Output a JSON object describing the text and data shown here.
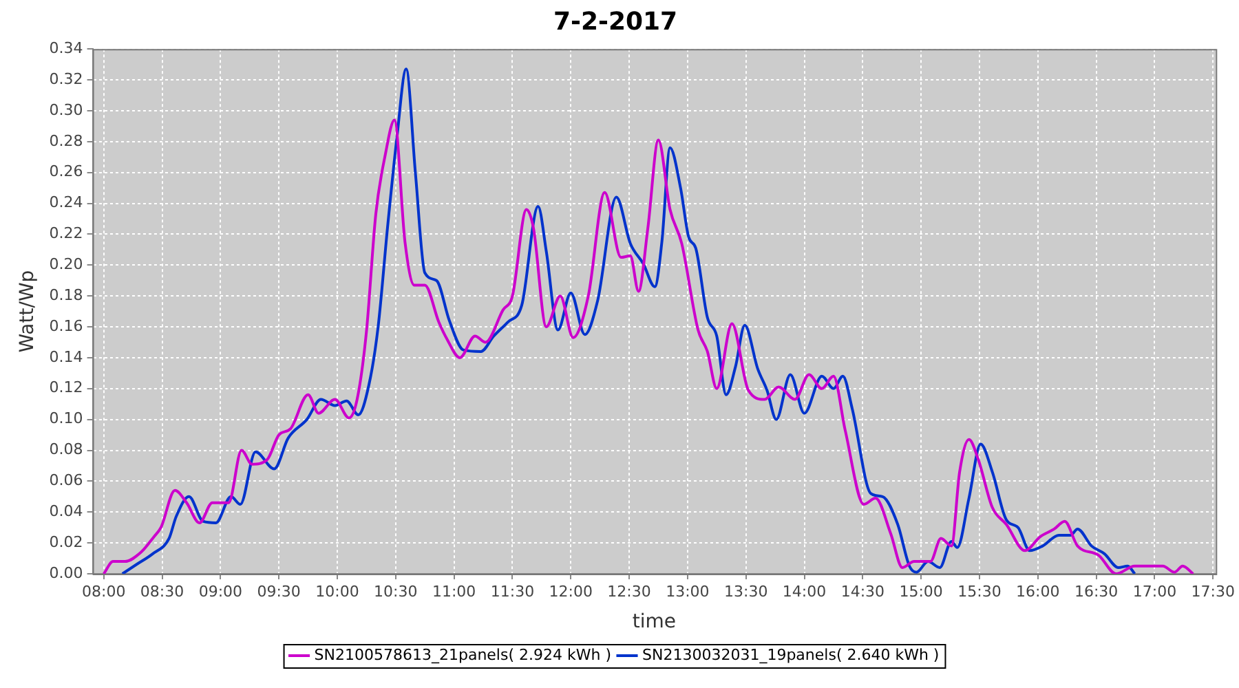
{
  "chart_data": {
    "type": "line",
    "title": "7-2-2017",
    "xlabel": "time",
    "ylabel": "Watt/Wp",
    "legend": "bottom",
    "grid": true,
    "marker": "none",
    "line_style": "solid",
    "xlim": [
      7.905,
      17.524
    ],
    "xticks": [
      {
        "value": 8,
        "label": "08:00"
      },
      {
        "value": 8.5,
        "label": "08:30"
      },
      {
        "value": 9,
        "label": "09:00"
      },
      {
        "value": 9.5,
        "label": "09:30"
      },
      {
        "value": 10,
        "label": "10:00"
      },
      {
        "value": 10.5,
        "label": "10:30"
      },
      {
        "value": 11,
        "label": "11:00"
      },
      {
        "value": 11.5,
        "label": "11:30"
      },
      {
        "value": 12,
        "label": "12:00"
      },
      {
        "value": 12.5,
        "label": "12:30"
      },
      {
        "value": 13,
        "label": "13:00"
      },
      {
        "value": 13.5,
        "label": "13:30"
      },
      {
        "value": 14,
        "label": "14:00"
      },
      {
        "value": 14.5,
        "label": "14:30"
      },
      {
        "value": 15,
        "label": "15:00"
      },
      {
        "value": 15.5,
        "label": "15:30"
      },
      {
        "value": 16,
        "label": "16:00"
      },
      {
        "value": 16.5,
        "label": "16:30"
      },
      {
        "value": 17,
        "label": "17:00"
      },
      {
        "value": 17.5,
        "label": "17:30"
      }
    ],
    "ylim": [
      0,
      0.34
    ],
    "yticks": [
      {
        "value": 0,
        "label": "0.00"
      },
      {
        "value": 0.02,
        "label": "0.02"
      },
      {
        "value": 0.04,
        "label": "0.04"
      },
      {
        "value": 0.06,
        "label": "0.06"
      },
      {
        "value": 0.08,
        "label": "0.08"
      },
      {
        "value": 0.1,
        "label": "0.10"
      },
      {
        "value": 0.12,
        "label": "0.12"
      },
      {
        "value": 0.14,
        "label": "0.14"
      },
      {
        "value": 0.16,
        "label": "0.16"
      },
      {
        "value": 0.18,
        "label": "0.18"
      },
      {
        "value": 0.2,
        "label": "0.20"
      },
      {
        "value": 0.22,
        "label": "0.22"
      },
      {
        "value": 0.24,
        "label": "0.24"
      },
      {
        "value": 0.26,
        "label": "0.26"
      },
      {
        "value": 0.28,
        "label": "0.28"
      },
      {
        "value": 0.3,
        "label": "0.30"
      },
      {
        "value": 0.32,
        "label": "0.32"
      },
      {
        "value": 0.34,
        "label": "0.34"
      }
    ],
    "series": [
      {
        "name": "SN2100578613_21panels( 2.924 kWh )",
        "color": "#cc00cc",
        "x": [
          8.0,
          8.08,
          8.18,
          8.32,
          8.43,
          8.49,
          8.61,
          8.71,
          8.82,
          8.93,
          9.07,
          9.18,
          9.27,
          9.4,
          9.5,
          9.6,
          9.75,
          9.84,
          9.98,
          10.1,
          10.17,
          10.25,
          10.33,
          10.41,
          10.49,
          10.58,
          10.66,
          10.75,
          10.87,
          10.94,
          11.05,
          11.18,
          11.27,
          11.42,
          11.5,
          11.62,
          11.68,
          11.79,
          11.91,
          12.02,
          12.15,
          12.29,
          12.43,
          12.51,
          12.58,
          12.66,
          12.75,
          12.85,
          12.95,
          13.09,
          13.17,
          13.25,
          13.38,
          13.52,
          13.66,
          13.78,
          13.92,
          14.04,
          14.15,
          14.25,
          14.35,
          14.51,
          14.61,
          14.74,
          14.84,
          14.94,
          15.08,
          15.17,
          15.26,
          15.33,
          15.41,
          15.49,
          15.61,
          15.73,
          15.89,
          16.02,
          16.14,
          16.23,
          16.34,
          16.52,
          16.67,
          16.83,
          17.07,
          17.17,
          17.24,
          17.33
        ],
        "values": [
          0,
          0.008,
          0.008,
          0.014,
          0.024,
          0.03,
          0.054,
          0.046,
          0.033,
          0.046,
          0.046,
          0.08,
          0.071,
          0.074,
          0.09,
          0.094,
          0.116,
          0.104,
          0.113,
          0.101,
          0.113,
          0.157,
          0.233,
          0.271,
          0.294,
          0.215,
          0.187,
          0.187,
          0.163,
          0.152,
          0.14,
          0.154,
          0.15,
          0.171,
          0.18,
          0.236,
          0.224,
          0.16,
          0.18,
          0.153,
          0.18,
          0.247,
          0.205,
          0.206,
          0.183,
          0.224,
          0.281,
          0.236,
          0.214,
          0.158,
          0.144,
          0.12,
          0.162,
          0.119,
          0.113,
          0.121,
          0.113,
          0.129,
          0.12,
          0.128,
          0.093,
          0.045,
          0.049,
          0.026,
          0.004,
          0.008,
          0.008,
          0.023,
          0.018,
          0.066,
          0.087,
          0.074,
          0.043,
          0.032,
          0.015,
          0.024,
          0.029,
          0.034,
          0.018,
          0.012,
          0,
          0.005,
          0.005,
          0.001,
          0.005,
          0
        ]
      },
      {
        "name": "SN2130032031_19panels( 2.640 kWh )",
        "color": "#0033cc",
        "x": [
          8.16,
          8.28,
          8.42,
          8.56,
          8.62,
          8.73,
          8.85,
          8.96,
          9.09,
          9.17,
          9.3,
          9.46,
          9.58,
          9.74,
          9.86,
          9.98,
          10.08,
          10.18,
          10.27,
          10.35,
          10.43,
          10.51,
          10.59,
          10.67,
          10.75,
          10.85,
          10.96,
          11.08,
          11.23,
          11.34,
          11.46,
          11.58,
          11.72,
          11.79,
          11.89,
          12.0,
          12.12,
          12.23,
          12.39,
          12.51,
          12.62,
          12.72,
          12.78,
          12.85,
          12.94,
          13.01,
          13.07,
          13.17,
          13.25,
          13.33,
          13.41,
          13.49,
          13.6,
          13.68,
          13.76,
          13.88,
          14.0,
          14.15,
          14.25,
          14.33,
          14.41,
          14.57,
          14.67,
          14.8,
          14.9,
          14.96,
          15.06,
          15.16,
          15.26,
          15.31,
          15.41,
          15.51,
          15.61,
          15.73,
          15.83,
          15.93,
          16.04,
          16.18,
          16.28,
          16.34,
          16.46,
          16.57,
          16.69,
          16.77,
          16.83
        ],
        "values": [
          0,
          0.006,
          0.013,
          0.023,
          0.037,
          0.05,
          0.034,
          0.033,
          0.05,
          0.045,
          0.079,
          0.068,
          0.088,
          0.1,
          0.113,
          0.109,
          0.112,
          0.103,
          0.122,
          0.16,
          0.224,
          0.282,
          0.327,
          0.259,
          0.195,
          0.19,
          0.164,
          0.145,
          0.144,
          0.154,
          0.163,
          0.174,
          0.238,
          0.209,
          0.158,
          0.182,
          0.155,
          0.177,
          0.244,
          0.214,
          0.201,
          0.186,
          0.215,
          0.276,
          0.25,
          0.218,
          0.211,
          0.166,
          0.154,
          0.116,
          0.134,
          0.161,
          0.133,
          0.119,
          0.1,
          0.129,
          0.104,
          0.128,
          0.12,
          0.128,
          0.107,
          0.052,
          0.05,
          0.032,
          0.005,
          0.001,
          0.008,
          0.004,
          0.021,
          0.017,
          0.049,
          0.084,
          0.066,
          0.035,
          0.03,
          0.015,
          0.018,
          0.025,
          0.025,
          0.029,
          0.018,
          0.013,
          0.004,
          0.005,
          0
        ]
      }
    ]
  }
}
